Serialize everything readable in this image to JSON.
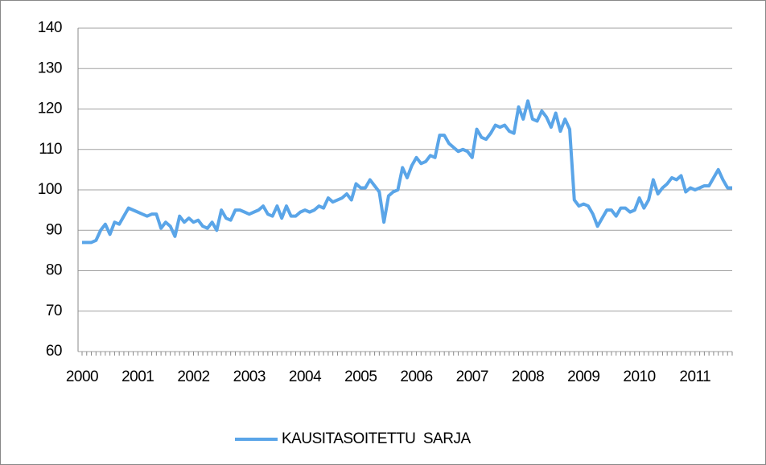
{
  "chart_data": {
    "type": "line",
    "categories": [
      "2000",
      null,
      null,
      null,
      null,
      null,
      null,
      null,
      null,
      null,
      null,
      null,
      "2001",
      null,
      null,
      null,
      null,
      null,
      null,
      null,
      null,
      null,
      null,
      null,
      "2002",
      null,
      null,
      null,
      null,
      null,
      null,
      null,
      null,
      null,
      null,
      null,
      "2003",
      null,
      null,
      null,
      null,
      null,
      null,
      null,
      null,
      null,
      null,
      null,
      "2004",
      null,
      null,
      null,
      null,
      null,
      null,
      null,
      null,
      null,
      null,
      null,
      "2005",
      null,
      null,
      null,
      null,
      null,
      null,
      null,
      null,
      null,
      null,
      null,
      "2006",
      null,
      null,
      null,
      null,
      null,
      null,
      null,
      null,
      null,
      null,
      null,
      "2007",
      null,
      null,
      null,
      null,
      null,
      null,
      null,
      null,
      null,
      null,
      null,
      "2008",
      null,
      null,
      null,
      null,
      null,
      null,
      null,
      null,
      null,
      null,
      null,
      "2009",
      null,
      null,
      null,
      null,
      null,
      null,
      null,
      null,
      null,
      null,
      null,
      "2010",
      null,
      null,
      null,
      null,
      null,
      null,
      null,
      null,
      null,
      null,
      null,
      "2011",
      null,
      null,
      null,
      null,
      null,
      null,
      null,
      null
    ],
    "series": [
      {
        "name": "KAUSITASOITETTU  SARJA",
        "color": "#5aa5e8",
        "values": [
          87,
          87,
          87,
          87.5,
          90,
          91.5,
          89,
          92,
          91.5,
          93.5,
          95.5,
          95,
          94.5,
          94,
          93.5,
          94,
          94,
          90.5,
          92,
          91,
          88.5,
          93.5,
          92,
          93,
          92,
          92.5,
          91,
          90.5,
          92,
          90,
          95,
          93,
          92.5,
          95,
          95,
          94.5,
          94,
          94.5,
          95,
          96,
          94,
          93.5,
          96,
          93,
          96,
          93.5,
          93.5,
          94.5,
          95,
          94.5,
          95,
          96,
          95.5,
          98,
          97,
          97.5,
          98,
          99,
          97.5,
          101.5,
          100.5,
          100.5,
          102.5,
          101,
          99.5,
          92,
          98.5,
          99.5,
          100,
          105.5,
          103,
          106,
          108,
          106.5,
          107,
          108.5,
          108,
          113.5,
          113.5,
          111.5,
          110.5,
          109.5,
          110,
          109.5,
          108,
          115,
          113,
          112.5,
          114,
          116,
          115.5,
          116,
          114.5,
          114,
          120.5,
          117.5,
          122,
          117.5,
          117,
          119.5,
          118,
          115.5,
          119,
          114.5,
          117.5,
          115,
          97.5,
          96,
          96.5,
          96,
          94,
          91,
          93,
          95,
          95,
          93.5,
          95.5,
          95.5,
          94.5,
          95,
          98,
          95.5,
          97.5,
          102.5,
          99,
          100.5,
          101.5,
          103,
          102.5,
          103.5,
          99.5,
          100.5,
          100,
          100.5,
          101,
          101,
          103,
          105,
          102.5,
          100.5,
          100.5
        ]
      }
    ],
    "ylim": [
      60,
      140
    ],
    "yticks": [
      60,
      70,
      80,
      90,
      100,
      110,
      120,
      130,
      140
    ],
    "grid": true,
    "legend": "bottom"
  }
}
